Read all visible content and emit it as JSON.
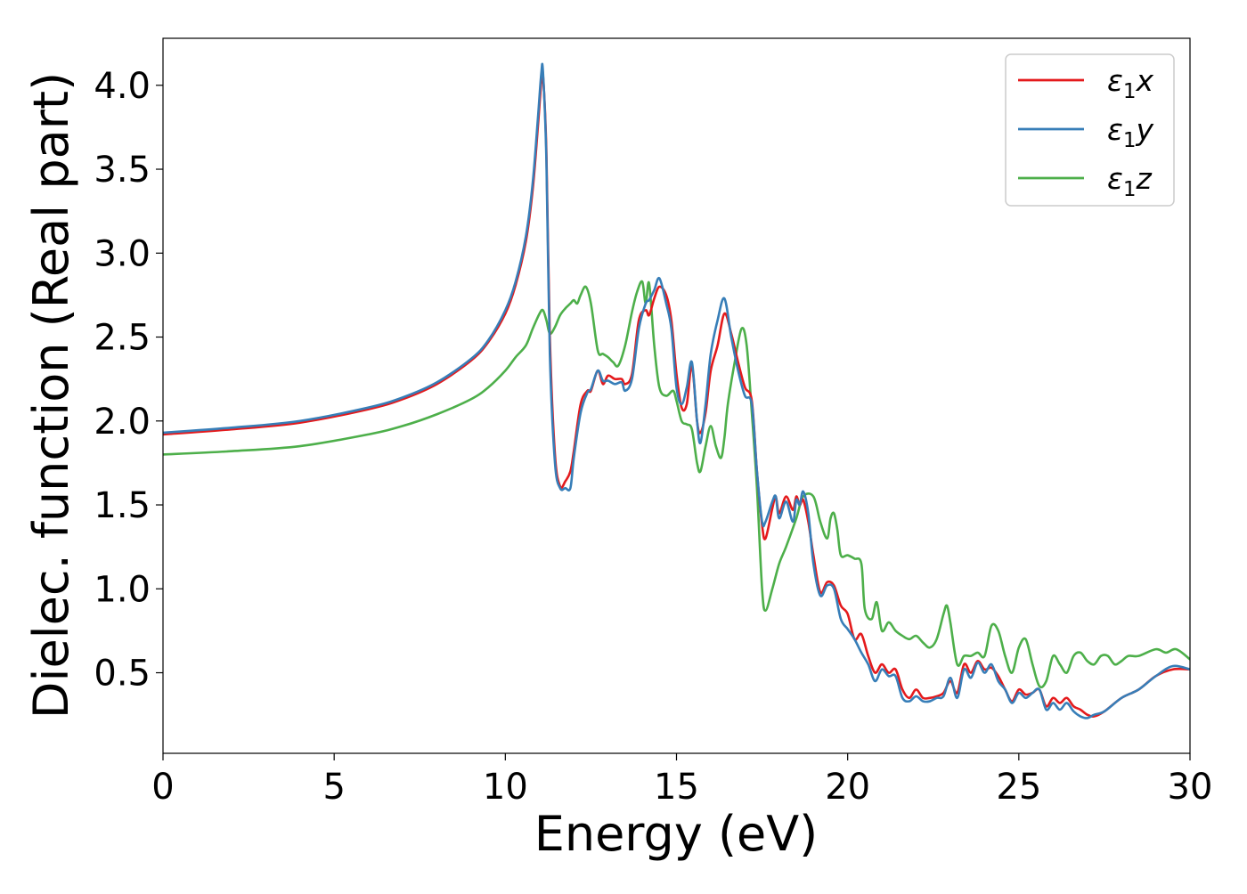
{
  "chart_data": {
    "type": "line",
    "xlabel": "Energy (eV)",
    "ylabel": "Dielec. function (Real part)",
    "xlim": [
      0,
      30
    ],
    "ylim": [
      0.02,
      4.28
    ],
    "xticks": [
      0,
      5,
      10,
      15,
      20,
      25,
      30
    ],
    "xtick_labels": [
      "0",
      "5",
      "10",
      "15",
      "20",
      "25",
      "30"
    ],
    "yticks": [
      0.5,
      1.0,
      1.5,
      2.0,
      2.5,
      3.0,
      3.5,
      4.0
    ],
    "ytick_labels": [
      "0.5",
      "1.0",
      "1.5",
      "2.0",
      "2.5",
      "3.0",
      "3.5",
      "4.0"
    ],
    "grid": false,
    "legend_position": "top-right",
    "series": [
      {
        "name": "ε₁x",
        "legend_base": "ε",
        "legend_sub": "1",
        "legend_var": "x",
        "color": "#e41a1c",
        "x": [
          0,
          2,
          4,
          6,
          7,
          8,
          9,
          9.5,
          10,
          10.3,
          10.6,
          10.8,
          10.95,
          11.05,
          11.1,
          11.2,
          11.3,
          11.45,
          11.6,
          11.75,
          11.9,
          12.0,
          12.2,
          12.4,
          12.5,
          12.7,
          12.85,
          13.0,
          13.2,
          13.4,
          13.5,
          13.7,
          13.9,
          14.1,
          14.2,
          14.35,
          14.5,
          14.7,
          14.85,
          15.0,
          15.15,
          15.3,
          15.45,
          15.6,
          15.7,
          15.85,
          16.0,
          16.2,
          16.4,
          16.6,
          16.8,
          17.0,
          17.2,
          17.35,
          17.5,
          17.6,
          17.8,
          17.9,
          18.0,
          18.2,
          18.4,
          18.5,
          18.6,
          18.7,
          18.85,
          19.0,
          19.2,
          19.4,
          19.6,
          19.8,
          20.0,
          20.2,
          20.4,
          20.6,
          20.8,
          21.0,
          21.2,
          21.4,
          21.6,
          21.8,
          22.0,
          22.2,
          22.4,
          22.6,
          22.8,
          23.0,
          23.2,
          23.4,
          23.6,
          23.8,
          24.0,
          24.2,
          24.4,
          24.6,
          24.8,
          25.0,
          25.2,
          25.4,
          25.6,
          25.8,
          26.0,
          26.2,
          26.4,
          26.6,
          26.8,
          27.0,
          27.2,
          27.5,
          28.0,
          28.5,
          29.0,
          29.5,
          30.0
        ],
        "y": [
          1.92,
          1.95,
          1.99,
          2.07,
          2.13,
          2.22,
          2.36,
          2.47,
          2.64,
          2.81,
          3.07,
          3.38,
          3.75,
          4.02,
          4.06,
          3.6,
          2.5,
          1.8,
          1.61,
          1.64,
          1.7,
          1.82,
          2.1,
          2.18,
          2.18,
          2.3,
          2.22,
          2.27,
          2.25,
          2.25,
          2.22,
          2.28,
          2.6,
          2.66,
          2.63,
          2.73,
          2.8,
          2.75,
          2.6,
          2.28,
          2.08,
          2.1,
          2.33,
          2.0,
          1.93,
          2.05,
          2.3,
          2.45,
          2.64,
          2.52,
          2.35,
          2.2,
          2.12,
          1.7,
          1.38,
          1.3,
          1.48,
          1.55,
          1.45,
          1.55,
          1.47,
          1.55,
          1.5,
          1.53,
          1.4,
          1.2,
          0.98,
          1.04,
          1.02,
          0.9,
          0.85,
          0.7,
          0.73,
          0.6,
          0.5,
          0.55,
          0.5,
          0.52,
          0.4,
          0.35,
          0.4,
          0.35,
          0.35,
          0.36,
          0.38,
          0.45,
          0.38,
          0.55,
          0.5,
          0.57,
          0.52,
          0.53,
          0.48,
          0.4,
          0.33,
          0.4,
          0.37,
          0.38,
          0.4,
          0.3,
          0.35,
          0.32,
          0.35,
          0.3,
          0.28,
          0.25,
          0.24,
          0.27,
          0.35,
          0.4,
          0.48,
          0.52,
          0.52
        ]
      },
      {
        "name": "ε₁y",
        "legend_base": "ε",
        "legend_sub": "1",
        "legend_var": "y",
        "color": "#377eb8",
        "x": [
          0,
          2,
          4,
          6,
          7,
          8,
          9,
          9.5,
          10,
          10.3,
          10.6,
          10.8,
          10.95,
          11.05,
          11.1,
          11.2,
          11.3,
          11.45,
          11.6,
          11.75,
          11.9,
          12.0,
          12.2,
          12.4,
          12.5,
          12.7,
          12.85,
          13.0,
          13.2,
          13.4,
          13.5,
          13.7,
          13.9,
          14.1,
          14.2,
          14.35,
          14.5,
          14.7,
          14.85,
          15.0,
          15.15,
          15.3,
          15.45,
          15.6,
          15.7,
          15.85,
          16.0,
          16.2,
          16.4,
          16.6,
          16.8,
          17.0,
          17.2,
          17.35,
          17.5,
          17.6,
          17.8,
          17.9,
          18.0,
          18.2,
          18.4,
          18.5,
          18.6,
          18.7,
          18.85,
          19.0,
          19.2,
          19.4,
          19.6,
          19.8,
          20.0,
          20.2,
          20.4,
          20.6,
          20.8,
          21.0,
          21.2,
          21.4,
          21.6,
          21.8,
          22.0,
          22.2,
          22.4,
          22.6,
          22.8,
          23.0,
          23.2,
          23.4,
          23.6,
          23.8,
          24.0,
          24.2,
          24.4,
          24.6,
          24.8,
          25.0,
          25.2,
          25.4,
          25.6,
          25.8,
          26.0,
          26.2,
          26.4,
          26.6,
          26.8,
          27.0,
          27.2,
          27.5,
          28.0,
          28.5,
          29.0,
          29.5,
          30.0
        ],
        "y": [
          1.93,
          1.96,
          2.0,
          2.08,
          2.14,
          2.23,
          2.37,
          2.48,
          2.66,
          2.83,
          3.1,
          3.42,
          3.8,
          4.07,
          4.08,
          3.55,
          2.4,
          1.75,
          1.6,
          1.6,
          1.6,
          1.78,
          2.05,
          2.17,
          2.19,
          2.3,
          2.24,
          2.24,
          2.22,
          2.23,
          2.18,
          2.25,
          2.55,
          2.7,
          2.72,
          2.78,
          2.85,
          2.7,
          2.55,
          2.2,
          2.1,
          2.2,
          2.35,
          2.0,
          1.87,
          2.1,
          2.4,
          2.6,
          2.73,
          2.5,
          2.3,
          2.15,
          2.1,
          1.7,
          1.4,
          1.4,
          1.52,
          1.55,
          1.42,
          1.52,
          1.4,
          1.53,
          1.5,
          1.58,
          1.45,
          1.15,
          0.96,
          1.02,
          1.0,
          0.82,
          0.76,
          0.7,
          0.62,
          0.55,
          0.45,
          0.52,
          0.48,
          0.48,
          0.35,
          0.33,
          0.36,
          0.33,
          0.33,
          0.35,
          0.36,
          0.47,
          0.35,
          0.52,
          0.47,
          0.56,
          0.5,
          0.55,
          0.45,
          0.4,
          0.32,
          0.38,
          0.35,
          0.38,
          0.4,
          0.28,
          0.32,
          0.28,
          0.32,
          0.27,
          0.24,
          0.23,
          0.25,
          0.27,
          0.35,
          0.4,
          0.48,
          0.54,
          0.52
        ]
      },
      {
        "name": "ε₁z",
        "legend_base": "ε",
        "legend_sub": "1",
        "legend_var": "z",
        "color": "#4daf4a",
        "x": [
          0,
          2,
          4,
          6,
          7,
          8,
          9,
          9.5,
          10,
          10.3,
          10.6,
          10.8,
          11.0,
          11.1,
          11.2,
          11.3,
          11.45,
          11.6,
          11.75,
          11.9,
          12.0,
          12.1,
          12.2,
          12.35,
          12.5,
          12.7,
          12.85,
          13.0,
          13.15,
          13.3,
          13.5,
          13.7,
          13.85,
          14.0,
          14.1,
          14.2,
          14.35,
          14.5,
          14.7,
          14.9,
          15.0,
          15.15,
          15.3,
          15.45,
          15.6,
          15.7,
          15.85,
          16.0,
          16.15,
          16.3,
          16.4,
          16.5,
          16.7,
          16.9,
          17.05,
          17.2,
          17.35,
          17.5,
          17.6,
          17.8,
          18.0,
          18.2,
          18.5,
          18.7,
          19.0,
          19.2,
          19.4,
          19.5,
          19.6,
          19.7,
          19.8,
          20.0,
          20.2,
          20.4,
          20.5,
          20.7,
          20.85,
          21.0,
          21.2,
          21.4,
          21.6,
          21.8,
          22.0,
          22.2,
          22.4,
          22.6,
          22.8,
          22.9,
          23.0,
          23.2,
          23.4,
          23.6,
          23.8,
          24.0,
          24.2,
          24.4,
          24.6,
          24.8,
          25.0,
          25.2,
          25.4,
          25.6,
          25.8,
          26.0,
          26.2,
          26.4,
          26.6,
          26.8,
          27.0,
          27.2,
          27.4,
          27.6,
          27.8,
          28.0,
          28.2,
          28.5,
          29.0,
          29.3,
          29.6,
          30.0
        ],
        "y": [
          1.8,
          1.82,
          1.85,
          1.92,
          1.97,
          2.04,
          2.13,
          2.2,
          2.3,
          2.38,
          2.45,
          2.55,
          2.64,
          2.66,
          2.6,
          2.52,
          2.56,
          2.63,
          2.67,
          2.7,
          2.72,
          2.7,
          2.75,
          2.8,
          2.7,
          2.42,
          2.4,
          2.38,
          2.35,
          2.33,
          2.45,
          2.65,
          2.77,
          2.83,
          2.7,
          2.82,
          2.45,
          2.2,
          2.15,
          2.18,
          2.12,
          2.0,
          1.98,
          1.95,
          1.75,
          1.7,
          1.85,
          1.97,
          1.85,
          1.78,
          1.9,
          2.1,
          2.35,
          2.55,
          2.45,
          2.05,
          1.6,
          1.0,
          0.87,
          1.0,
          1.15,
          1.25,
          1.42,
          1.55,
          1.55,
          1.4,
          1.3,
          1.42,
          1.45,
          1.35,
          1.2,
          1.2,
          1.18,
          1.15,
          0.88,
          0.82,
          0.92,
          0.75,
          0.8,
          0.75,
          0.72,
          0.7,
          0.72,
          0.68,
          0.65,
          0.7,
          0.85,
          0.9,
          0.8,
          0.55,
          0.6,
          0.6,
          0.62,
          0.6,
          0.78,
          0.75,
          0.6,
          0.5,
          0.65,
          0.7,
          0.55,
          0.42,
          0.45,
          0.6,
          0.55,
          0.5,
          0.6,
          0.62,
          0.57,
          0.55,
          0.6,
          0.6,
          0.55,
          0.57,
          0.6,
          0.6,
          0.64,
          0.62,
          0.64,
          0.58
        ]
      }
    ]
  }
}
